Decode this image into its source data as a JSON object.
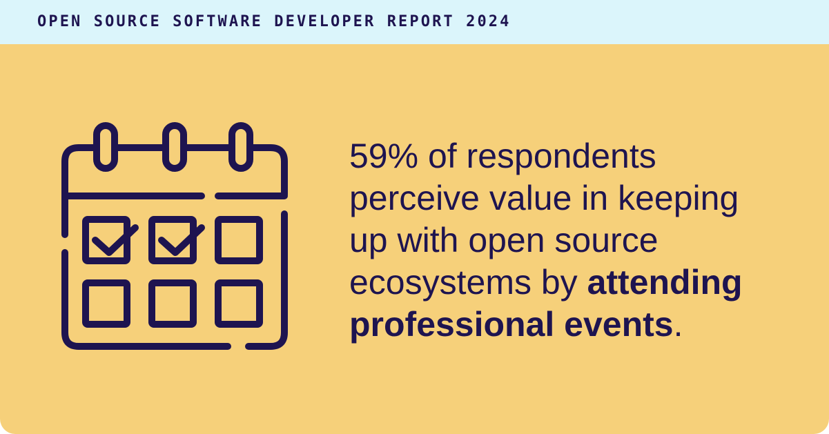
{
  "header": {
    "title": "OPEN SOURCE SOFTWARE DEVELOPER REPORT 2024",
    "background": "#dbf5fb",
    "text_color": "#1e1450"
  },
  "card": {
    "background": "#f6d07a"
  },
  "icon": {
    "name": "calendar-check-icon",
    "stroke_color": "#1e1450"
  },
  "statement": {
    "line1": "59% of respondents",
    "line2": "perceive value in keeping",
    "line3": "up with open source",
    "line4_plain": "ecosystems by ",
    "line4_bold": "attending",
    "line5_bold": "professional events",
    "line5_tail": "."
  }
}
